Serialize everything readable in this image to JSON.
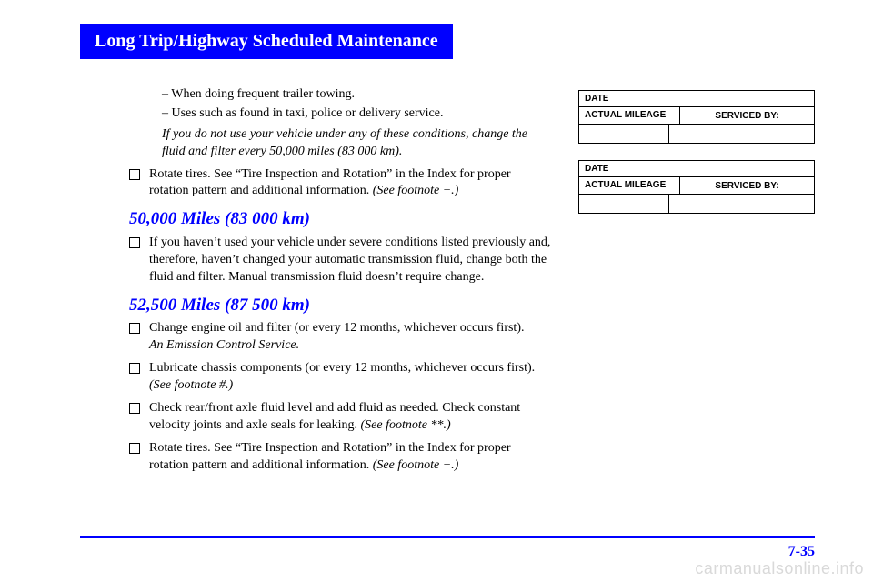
{
  "title_bar": "Long Trip/Highway Scheduled Maintenance",
  "pre_items": {
    "sub1": "–   When doing frequent trailer towing.",
    "sub2": "–   Uses such as found in taxi, police or delivery service.",
    "note": "If you do not use your vehicle under any of these conditions, change the fluid and filter every 50,000 miles (83 000 km).",
    "check1": "Rotate tires. See “Tire Inspection and Rotation” in the Index for proper rotation pattern and additional information.",
    "check1_foot": " (See footnote +.)"
  },
  "section_50k": {
    "heading": "50,000 Miles (83 000 km)",
    "item1": "If you haven’t used your vehicle under severe conditions listed previously and, therefore, haven’t changed your automatic transmission fluid, change both the fluid and filter. Manual transmission fluid doesn’t require change."
  },
  "section_52k": {
    "heading": "52,500 Miles (87 500 km)",
    "item1": "Change engine oil and filter (or every 12 months, whichever occurs first).",
    "item1_foot": "An Emission Control Service.",
    "item2": "Lubricate chassis components (or every 12 months, whichever occurs first).",
    "item2_foot": "(See footnote #.)",
    "item3": "Check rear/front axle fluid level and add fluid as needed. Check constant velocity joints and axle seals for leaking.",
    "item3_foot": " (See footnote **.)",
    "item4": "Rotate tires. See “Tire Inspection and Rotation” in the Index for proper rotation pattern and additional information.",
    "item4_foot": " (See footnote +.)"
  },
  "record_box": {
    "date_label": "DATE",
    "mileage_label": "ACTUAL MILEAGE",
    "serviced_label": "SERVICED BY:"
  },
  "page_number": "7-35",
  "watermark": "carmanualsonline.info",
  "colors": {
    "brand_blue": "#0000ff",
    "text": "#000000",
    "watermark": "#d9d9d9",
    "bg": "#ffffff"
  }
}
